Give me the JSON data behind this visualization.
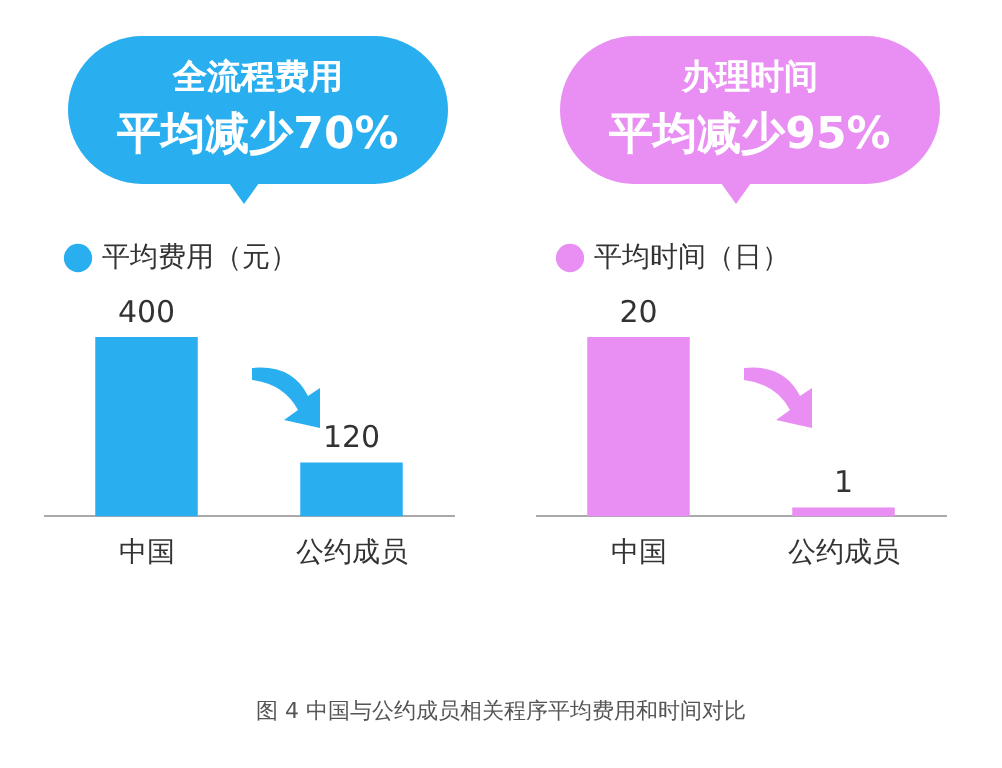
{
  "chart_data": [
    {
      "type": "bar",
      "title": "全流程费用",
      "subtitle": "平均减少70%",
      "categories": [
        "中国",
        "公约成员"
      ],
      "series": [
        {
          "name": "平均费用（元）",
          "color": "#29aef0",
          "values": [
            400,
            120
          ]
        }
      ],
      "data_labels": true,
      "legend": "top left",
      "grid": false,
      "annotations": [
        "图 4 中国与公约成员相关程序平均费用和时间对比"
      ]
    },
    {
      "type": "bar",
      "title": "办理时间",
      "subtitle": "平均减少95%",
      "categories": [
        "中国",
        "公约成员"
      ],
      "series": [
        {
          "name": "平均时间（日）",
          "color": "#e98ef2",
          "values": [
            20,
            1
          ]
        }
      ],
      "data_labels": true,
      "legend": "top left",
      "grid": false
    }
  ]
}
